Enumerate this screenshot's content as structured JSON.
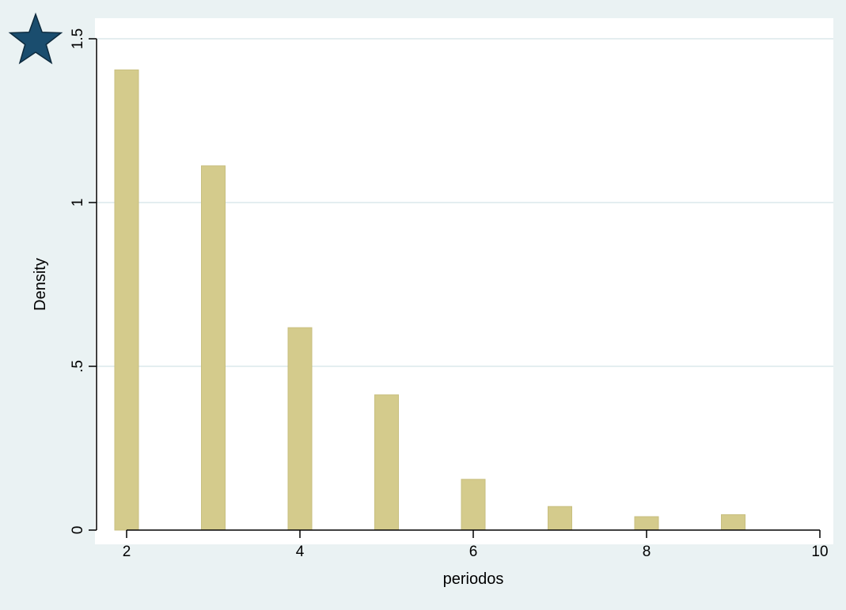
{
  "chart_data": {
    "type": "bar",
    "title": "",
    "xlabel": "periodos",
    "ylabel": "Density",
    "x": [
      2,
      3,
      4,
      5,
      6,
      7,
      8,
      9
    ],
    "values": [
      1.405,
      1.112,
      0.618,
      0.413,
      0.155,
      0.072,
      0.041,
      0.047
    ],
    "xlim": [
      1.9,
      10.1
    ],
    "ylim": [
      0,
      1.5
    ],
    "xticks": [
      2,
      4,
      6,
      8,
      10
    ],
    "xtick_labels": [
      "2",
      "4",
      "6",
      "8",
      "10"
    ],
    "yticks": [
      0,
      0.5,
      1,
      1.5
    ],
    "ytick_labels": [
      "0",
      ".5",
      "1",
      "1.5"
    ],
    "grid": "horizontal",
    "legend": "none",
    "colors": {
      "background": "#eaf2f3",
      "plot_background": "#ffffff",
      "bar_fill": "#d4cb8c",
      "bar_stroke": "#c8bf7f",
      "grid": "#e4eef0",
      "axis": "#000000",
      "star": "#1a4d6e",
      "star_stroke": "#0d2a3d"
    },
    "icon": "star-icon"
  }
}
